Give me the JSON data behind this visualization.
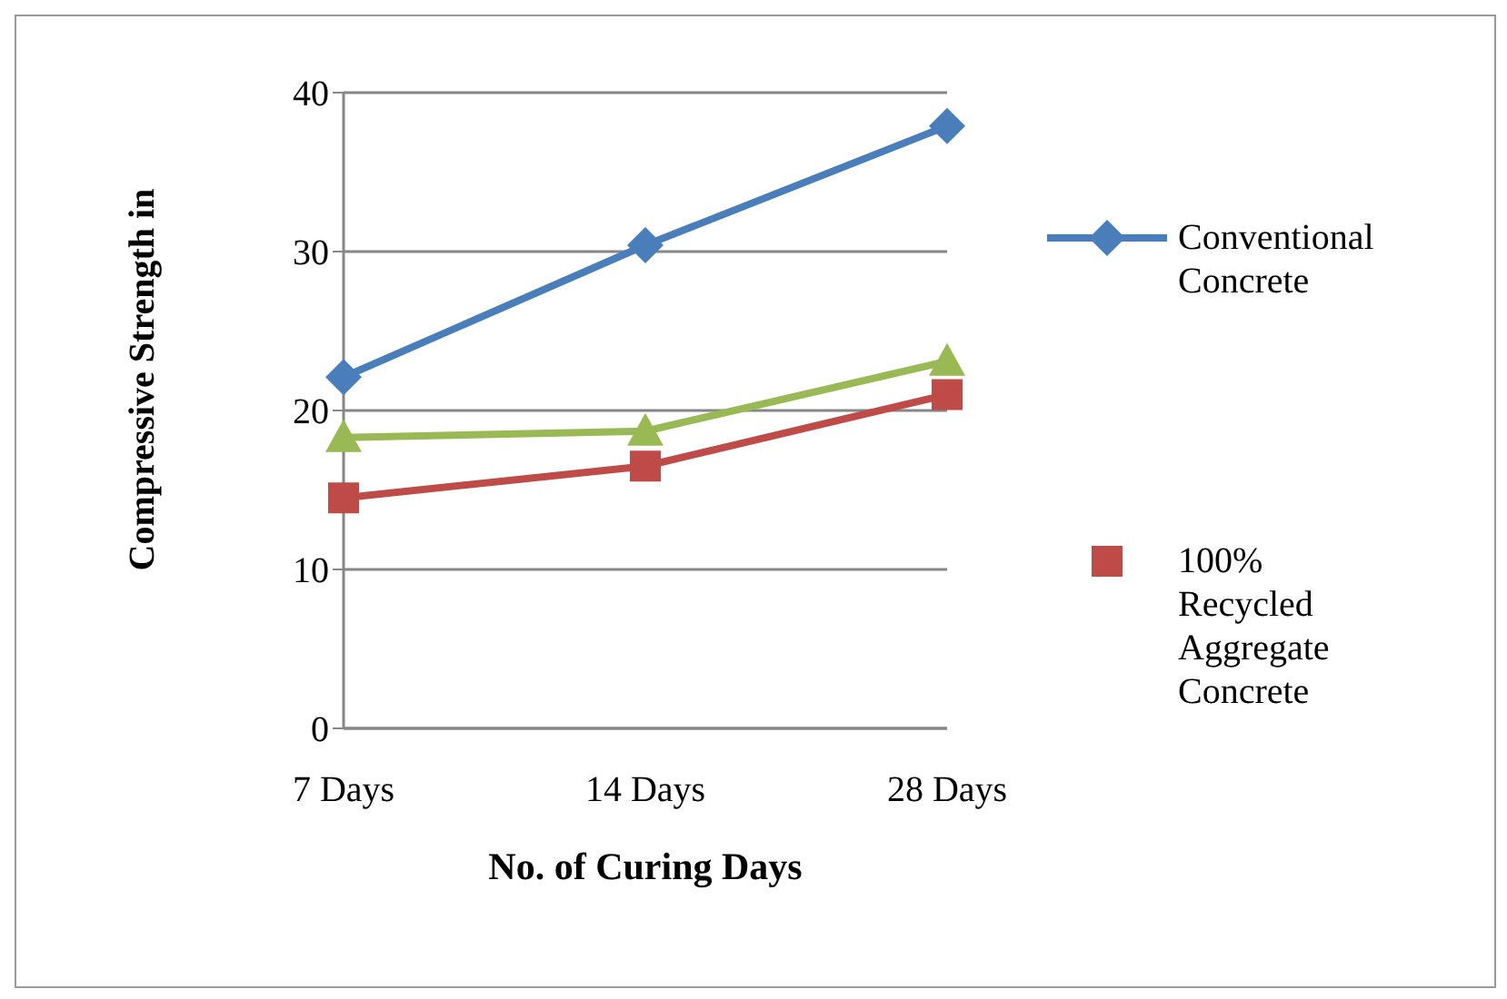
{
  "chart_data": {
    "type": "line",
    "ylabel": "Compressive  Strength in",
    "xlabel": "No. of Curing Days",
    "categories": [
      "7 Days",
      "14 Days",
      "28 Days"
    ],
    "series": [
      {
        "name": "Conventional Concrete",
        "color": "#4a7ebb",
        "marker": "diamond",
        "values": [
          22.1,
          30.4,
          37.9
        ]
      },
      {
        "name": "100% Recycled Aggregate Concrete",
        "color": "#be4b48",
        "marker": "square",
        "values": [
          14.5,
          16.5,
          21.0
        ]
      },
      {
        "color": "#98b954",
        "marker": "triangle",
        "values": [
          18.3,
          18.7,
          23.1
        ]
      }
    ],
    "ylim": [
      0,
      40
    ],
    "yticks": [
      0,
      10,
      20,
      30,
      40
    ],
    "grid": "y",
    "legend": "right"
  }
}
